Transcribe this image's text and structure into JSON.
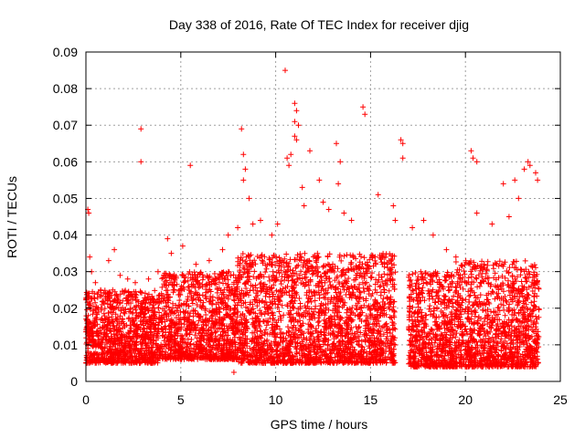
{
  "chart_data": {
    "type": "scatter",
    "title": "Day 338 of 2016, Rate Of TEC Index for receiver djig",
    "xlabel": "GPS time / hours",
    "ylabel": "ROTI / TECUs",
    "xlim": [
      0,
      25
    ],
    "ylim": [
      0,
      0.09
    ],
    "xticks": [
      0,
      5,
      10,
      15,
      20,
      25
    ],
    "xtick_labels": [
      "0",
      "5",
      "10",
      "15",
      "20",
      "25"
    ],
    "yticks": [
      0,
      0.01,
      0.02,
      0.03,
      0.04,
      0.05,
      0.06,
      0.07,
      0.08,
      0.09
    ],
    "ytick_labels": [
      "0",
      "0.01",
      "0.02",
      "0.03",
      "0.04",
      "0.05",
      "0.06",
      "0.07",
      "0.08",
      "0.09"
    ],
    "grid": true,
    "marker": "+",
    "color": "#ff0000",
    "series": [
      {
        "name": "ROTI",
        "points": [
          [
            0.1,
            0.047
          ],
          [
            0.15,
            0.046
          ],
          [
            0.2,
            0.034
          ],
          [
            0.3,
            0.03
          ],
          [
            0.5,
            0.027
          ],
          [
            1.2,
            0.033
          ],
          [
            1.5,
            0.036
          ],
          [
            1.8,
            0.029
          ],
          [
            2.2,
            0.028
          ],
          [
            2.6,
            0.027
          ],
          [
            2.9,
            0.069
          ],
          [
            2.9,
            0.06
          ],
          [
            3.3,
            0.028
          ],
          [
            3.8,
            0.03
          ],
          [
            4.3,
            0.039
          ],
          [
            4.5,
            0.035
          ],
          [
            5.1,
            0.037
          ],
          [
            5.5,
            0.059
          ],
          [
            5.8,
            0.032
          ],
          [
            6.5,
            0.033
          ],
          [
            7.2,
            0.036
          ],
          [
            7.5,
            0.04
          ],
          [
            7.8,
            0.0025
          ],
          [
            8.0,
            0.042
          ],
          [
            8.2,
            0.069
          ],
          [
            8.3,
            0.062
          ],
          [
            8.4,
            0.058
          ],
          [
            8.3,
            0.055
          ],
          [
            8.6,
            0.05
          ],
          [
            8.8,
            0.043
          ],
          [
            9.2,
            0.044
          ],
          [
            9.8,
            0.04
          ],
          [
            10.1,
            0.043
          ],
          [
            10.5,
            0.085
          ],
          [
            10.6,
            0.061
          ],
          [
            10.7,
            0.059
          ],
          [
            10.8,
            0.062
          ],
          [
            11.0,
            0.076
          ],
          [
            11.1,
            0.074
          ],
          [
            11.0,
            0.071
          ],
          [
            11.0,
            0.067
          ],
          [
            11.1,
            0.066
          ],
          [
            11.2,
            0.07
          ],
          [
            11.4,
            0.053
          ],
          [
            11.5,
            0.048
          ],
          [
            11.8,
            0.063
          ],
          [
            12.3,
            0.055
          ],
          [
            12.5,
            0.049
          ],
          [
            12.8,
            0.047
          ],
          [
            13.2,
            0.065
          ],
          [
            13.4,
            0.06
          ],
          [
            13.3,
            0.054
          ],
          [
            13.6,
            0.046
          ],
          [
            14.0,
            0.044
          ],
          [
            14.6,
            0.075
          ],
          [
            14.7,
            0.073
          ],
          [
            15.4,
            0.051
          ],
          [
            16.2,
            0.048
          ],
          [
            16.3,
            0.044
          ],
          [
            16.6,
            0.066
          ],
          [
            16.7,
            0.065
          ],
          [
            16.7,
            0.061
          ],
          [
            17.2,
            0.042
          ],
          [
            17.8,
            0.044
          ],
          [
            18.3,
            0.04
          ],
          [
            19.0,
            0.036
          ],
          [
            19.5,
            0.034
          ],
          [
            20.3,
            0.063
          ],
          [
            20.4,
            0.061
          ],
          [
            20.6,
            0.06
          ],
          [
            20.6,
            0.046
          ],
          [
            21.4,
            0.043
          ],
          [
            22.0,
            0.054
          ],
          [
            22.3,
            0.045
          ],
          [
            22.6,
            0.055
          ],
          [
            22.8,
            0.05
          ],
          [
            23.1,
            0.058
          ],
          [
            23.3,
            0.06
          ],
          [
            23.4,
            0.059
          ],
          [
            23.7,
            0.057
          ],
          [
            23.8,
            0.055
          ]
        ],
        "baseline_band": [
          {
            "x_range": [
              0,
              4
            ],
            "y_range": [
              0.005,
              0.025
            ]
          },
          {
            "x_range": [
              4,
              8
            ],
            "y_range": [
              0.006,
              0.03
            ]
          },
          {
            "x_range": [
              8,
              12
            ],
            "y_range": [
              0.005,
              0.035
            ]
          },
          {
            "x_range": [
              12,
              16.3
            ],
            "y_range": [
              0.005,
              0.035
            ]
          },
          {
            "x_range": [
              17.0,
              19.5
            ],
            "y_range": [
              0.004,
              0.03
            ]
          },
          {
            "x_range": [
              19.5,
              23.9
            ],
            "y_range": [
              0.004,
              0.033
            ]
          }
        ]
      }
    ]
  }
}
